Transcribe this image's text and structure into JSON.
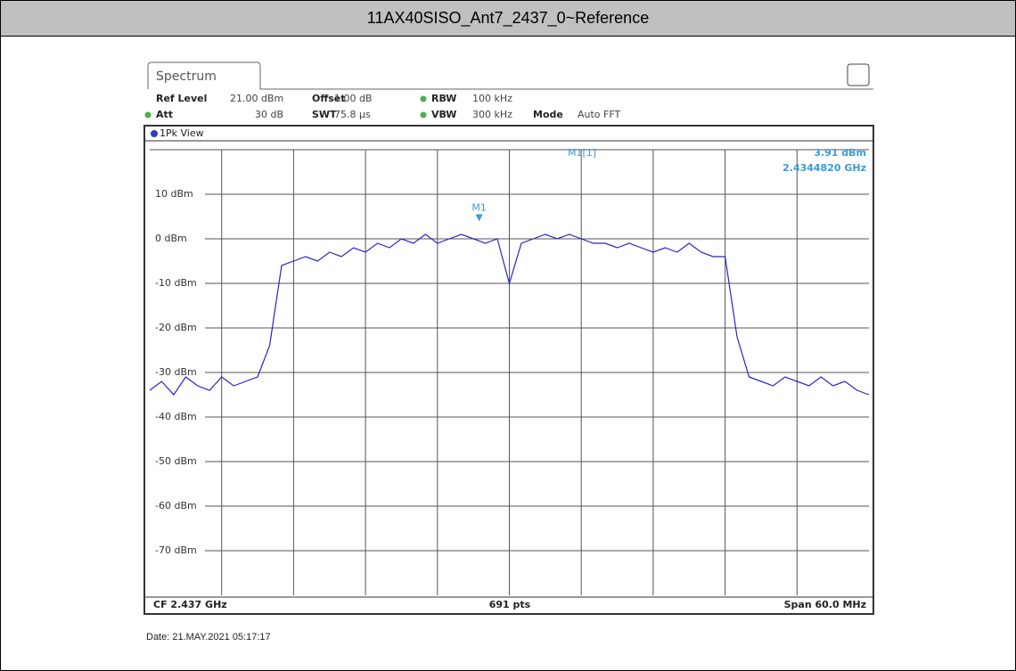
{
  "header": {
    "title": "11AX40SISO_Ant7_2437_0~Reference"
  },
  "panel": {
    "tab": "Spectrum",
    "settings": [
      {
        "name": "Ref Level",
        "value": "21.00 dBm"
      },
      {
        "name": "Offset",
        "value": "1.00 dB"
      },
      {
        "name": "RBW",
        "value": "100 kHz"
      },
      {
        "name": "Att",
        "value": "30 dB"
      },
      {
        "name": "SWT",
        "value": "75.8 µs"
      },
      {
        "name": "VBW",
        "value": "300 kHz"
      },
      {
        "name": "Mode",
        "value": "Auto FFT"
      }
    ],
    "view": "1Pk View",
    "footer": {
      "center_frequency": "CF 2.437 GHz",
      "points": "691 pts",
      "span": "Span 60.0 MHz"
    }
  },
  "date": "Date: 21.MAY.2021 05:17:17",
  "chart_data": {
    "type": "line",
    "x": [
      2.407,
      2.408,
      2.409,
      2.41,
      2.411,
      2.412,
      2.413,
      2.414,
      2.415,
      2.416,
      2.417,
      2.418,
      2.419,
      2.42,
      2.421,
      2.422,
      2.423,
      2.424,
      2.425,
      2.426,
      2.427,
      2.428,
      2.429,
      2.43,
      2.431,
      2.432,
      2.433,
      2.434,
      2.435,
      2.436,
      2.437,
      2.438,
      2.439,
      2.44,
      2.441,
      2.442,
      2.443,
      2.444,
      2.445,
      2.446,
      2.447,
      2.448,
      2.449,
      2.45,
      2.451,
      2.452,
      2.453,
      2.454,
      2.455,
      2.456,
      2.457,
      2.458,
      2.459,
      2.46,
      2.461,
      2.462,
      2.463,
      2.464,
      2.465,
      2.466,
      2.467
    ],
    "series": [
      {
        "name": "1Pk",
        "color": "#2626c8",
        "values": [
          -34,
          -32,
          -35,
          -31,
          -33,
          -34,
          -31,
          -33,
          -32,
          -31,
          -24,
          -6,
          -5,
          -4,
          -5,
          -3,
          -4,
          -2,
          -3,
          -1,
          -2,
          0,
          -1,
          1,
          -1,
          0,
          1,
          0,
          -1,
          0,
          -10,
          -1,
          0,
          1,
          0,
          1,
          0,
          -1,
          -1,
          -2,
          -1,
          -2,
          -3,
          -2,
          -3,
          -1,
          -3,
          -4,
          -4,
          -22,
          -31,
          -32,
          -33,
          -31,
          -32,
          -33,
          -31,
          -33,
          -32,
          -34,
          -35
        ]
      }
    ],
    "xlim": [
      2.407,
      2.467
    ],
    "ylim": [
      -80,
      21
    ],
    "yticks": [
      {
        "value": 10,
        "label": "10 dBm"
      },
      {
        "value": 0,
        "label": "0 dBm"
      },
      {
        "value": -10,
        "label": "-10 dBm"
      },
      {
        "value": -20,
        "label": "-20 dBm"
      },
      {
        "value": -30,
        "label": "-30 dBm"
      },
      {
        "value": -40,
        "label": "-40 dBm"
      },
      {
        "value": -50,
        "label": "-50 dBm"
      },
      {
        "value": -60,
        "label": "-60 dBm"
      },
      {
        "value": -70,
        "label": "-70 dBm"
      }
    ],
    "grid": true,
    "marker": {
      "label": "M1",
      "readout": "M1[1]",
      "x": 2.434482,
      "y": 3.91,
      "x_label": "2.4344820 GHz",
      "y_label": "3.91 dBm",
      "color": "#3a9ad9"
    }
  }
}
